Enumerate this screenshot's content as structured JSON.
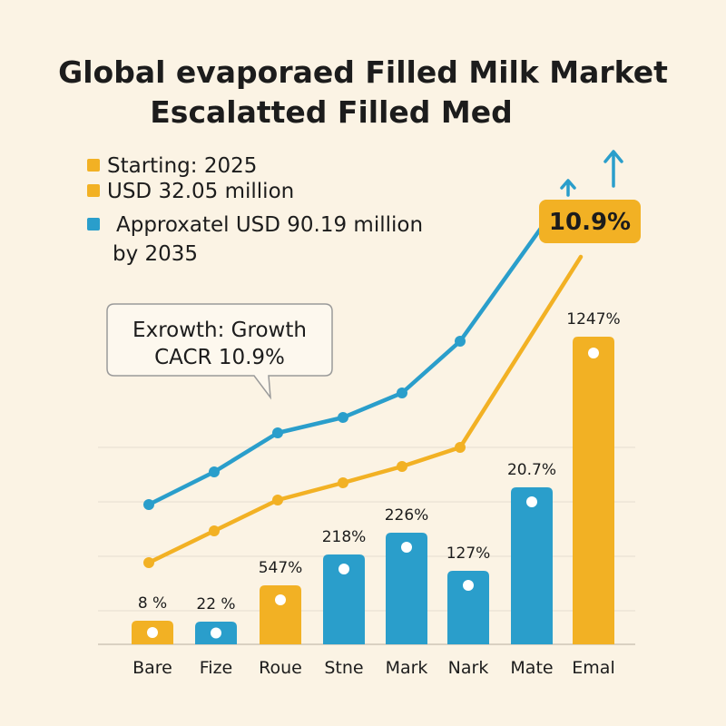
{
  "title_line1": "Global evaporaed Filled Milk Market",
  "title_line2": "Escalatted Filled Med",
  "legend": [
    {
      "text": "Starting: 2025",
      "color": "#f2b124"
    },
    {
      "text": "USD 32.05 million",
      "color": "#f2b124"
    },
    {
      "text": "Approxatel USD 90.19 million",
      "text2": "by 2035",
      "color": "#2a9ecb"
    }
  ],
  "callout": {
    "line1": "Exrowth: Growth",
    "line2": "CACR 10.9%"
  },
  "badge": "10.9%",
  "colors": {
    "blue": "#2a9ecb",
    "orange": "#f2b124",
    "background": "#fbf3e4"
  },
  "chart_data": {
    "type": "bar",
    "categories": [
      "Bare",
      "Fize",
      "Roue",
      "Stne",
      "Mark",
      "Nark",
      "Mate",
      "Emal"
    ],
    "values": [
      8,
      22,
      547,
      218,
      226,
      127,
      20.7,
      1247
    ],
    "labels": [
      "8 %",
      "22 %",
      "547%",
      "218%",
      "226%",
      "127%",
      "20.7%",
      "1247%"
    ],
    "bar_colors": [
      "orange",
      "blue",
      "orange",
      "blue",
      "blue",
      "blue",
      "blue",
      "orange"
    ],
    "lines": [
      {
        "color": "blue",
        "trend": "upward"
      },
      {
        "color": "orange",
        "trend": "upward"
      }
    ]
  }
}
